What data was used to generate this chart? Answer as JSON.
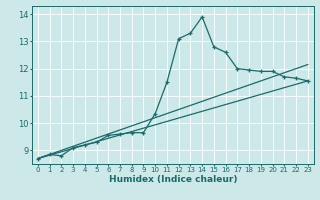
{
  "xlabel": "Humidex (Indice chaleur)",
  "ylabel": "",
  "bg_color": "#cce8e8",
  "line_color": "#1a6b6b",
  "grid_color": "#ffffff",
  "xlim": [
    -0.5,
    23.5
  ],
  "ylim": [
    8.5,
    14.3
  ],
  "yticks": [
    9,
    10,
    11,
    12,
    13,
    14
  ],
  "xticks": [
    0,
    1,
    2,
    3,
    4,
    5,
    6,
    7,
    8,
    9,
    10,
    11,
    12,
    13,
    14,
    15,
    16,
    17,
    18,
    19,
    20,
    21,
    22,
    23
  ],
  "main_x": [
    0,
    1,
    2,
    3,
    4,
    5,
    6,
    7,
    8,
    9,
    10,
    11,
    12,
    13,
    14,
    15,
    16,
    17,
    18,
    19,
    20,
    21,
    22,
    23
  ],
  "main_y": [
    8.7,
    8.85,
    8.8,
    9.1,
    9.2,
    9.3,
    9.55,
    9.6,
    9.65,
    9.65,
    10.35,
    11.5,
    13.1,
    13.3,
    13.9,
    12.8,
    12.6,
    12.0,
    11.95,
    11.9,
    11.9,
    11.7,
    11.65,
    11.55
  ],
  "line2_x": [
    0,
    23
  ],
  "line2_y": [
    8.7,
    11.55
  ],
  "line3_x": [
    0,
    23
  ],
  "line3_y": [
    8.7,
    12.15
  ]
}
